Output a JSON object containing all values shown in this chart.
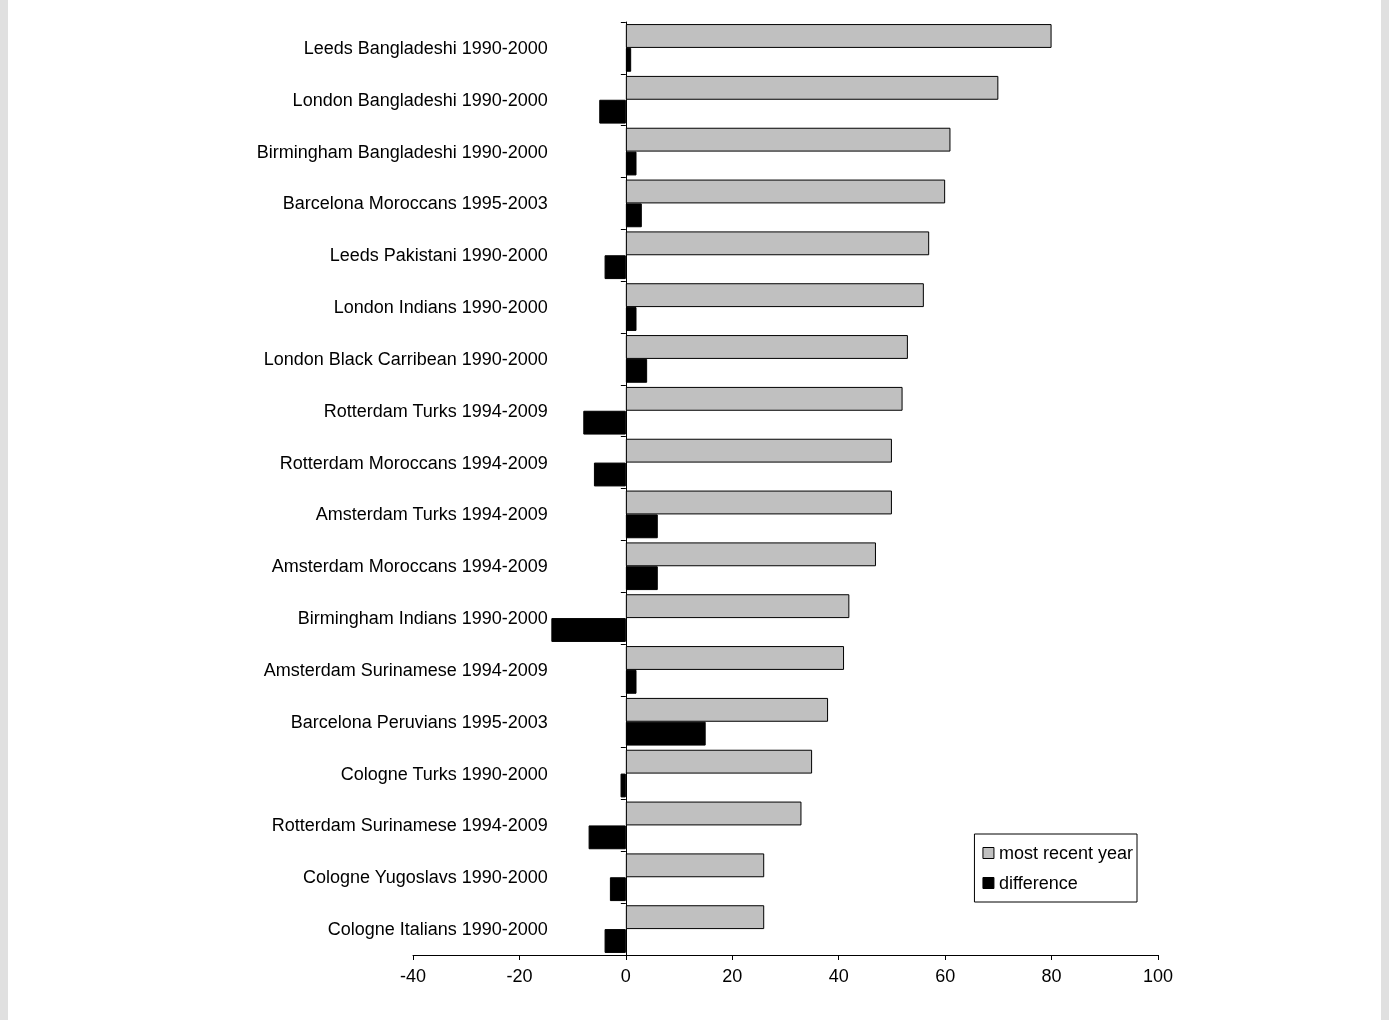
{
  "chart_data": {
    "type": "bar",
    "orientation": "horizontal",
    "categories": [
      "Leeds Bangladeshi 1990-2000",
      "London Bangladeshi 1990-2000",
      "Birmingham Bangladeshi 1990-2000",
      "Barcelona Moroccans 1995-2003",
      "Leeds Pakistani 1990-2000",
      "London Indians 1990-2000",
      "London Black Carribean 1990-2000",
      "Rotterdam Turks 1994-2009",
      "Rotterdam Moroccans 1994-2009",
      "Amsterdam Turks 1994-2009",
      "Amsterdam Moroccans 1994-2009",
      "Birmingham Indians 1990-2000",
      "Amsterdam Surinamese 1994-2009",
      "Barcelona Peruvians 1995-2003",
      "Cologne Turks 1990-2000",
      "Rotterdam Surinamese 1994-2009",
      "Cologne Yugoslavs 1990-2000",
      "Cologne Italians 1990-2000"
    ],
    "series": [
      {
        "name": "most recent year",
        "color": "#c0c0c0",
        "values": [
          80,
          70,
          61,
          60,
          57,
          56,
          53,
          52,
          50,
          50,
          47,
          42,
          41,
          38,
          35,
          33,
          26,
          26
        ]
      },
      {
        "name": "difference",
        "color": "#000000",
        "values": [
          1,
          -5,
          2,
          3,
          -4,
          2,
          4,
          -8,
          -6,
          6,
          6,
          -14,
          2,
          15,
          -1,
          -7,
          -3,
          -4
        ]
      }
    ],
    "xlim": [
      -40,
      100
    ],
    "xticks": [
      -40,
      -20,
      0,
      20,
      40,
      60,
      80,
      100
    ],
    "legend": "bottom right"
  }
}
